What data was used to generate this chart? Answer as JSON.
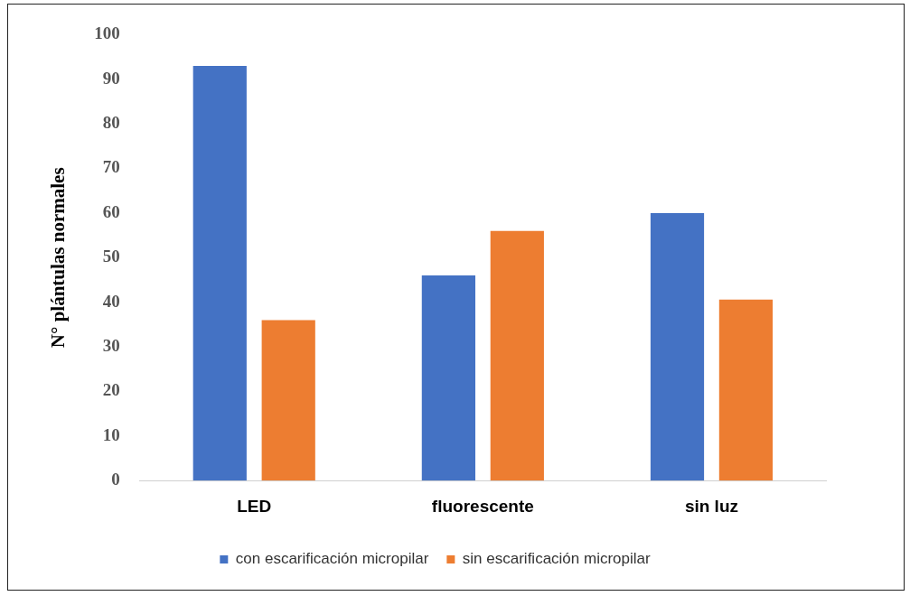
{
  "chart_data": {
    "type": "bar",
    "ylabel": "N° plántulas normales",
    "categories": [
      "LED",
      "fluorescente",
      "sin luz"
    ],
    "series": [
      {
        "name": "con escarificación micropilar",
        "color": "#4472c4",
        "values": [
          93,
          46,
          60
        ]
      },
      {
        "name": "sin escarificación micropilar",
        "color": "#ed7d31",
        "values": [
          36,
          56,
          40.6
        ]
      }
    ],
    "ylim": [
      0,
      100
    ],
    "yticks": [
      0,
      10,
      20,
      30,
      40,
      50,
      60,
      70,
      80,
      90,
      100
    ],
    "grid": false,
    "legend": "bottom"
  }
}
